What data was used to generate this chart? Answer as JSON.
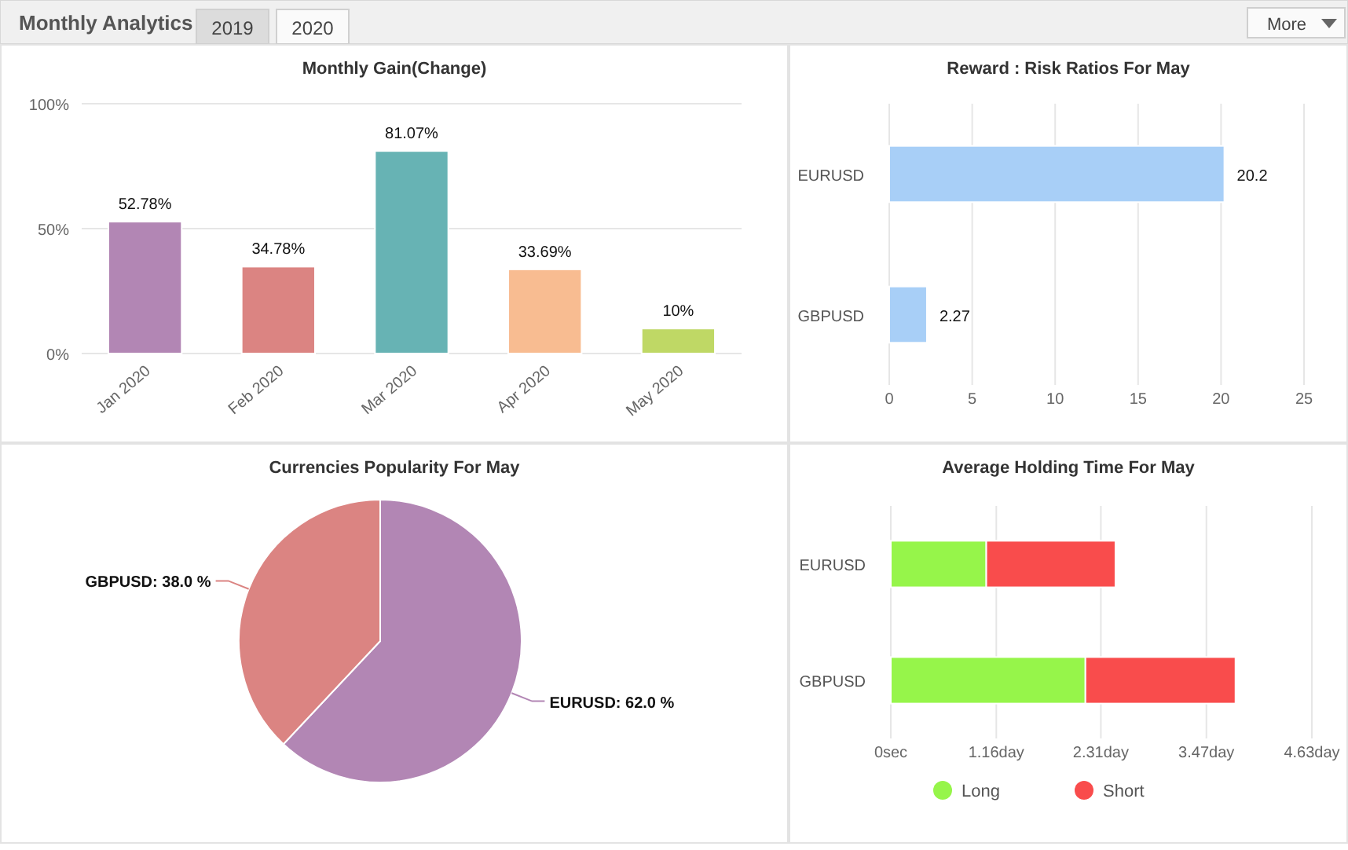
{
  "chart_data": [
    {
      "type": "other",
      "title": "Monthly Analytics",
      "annotations": [
        "2019",
        "2020",
        "More"
      ]
    },
    {
      "type": "bar",
      "title": "Monthly Gain(Change)",
      "categories": [
        "Jan 2020",
        "Feb 2020",
        "Mar 2020",
        "Apr 2020",
        "May 2020"
      ],
      "values": [
        52.78,
        34.78,
        81.07,
        33.69,
        10
      ],
      "colors": [
        "#b286b4",
        "#db8482",
        "#67b3b4",
        "#f8bc91",
        "#bfd865"
      ],
      "value_labels": [
        "52.78%",
        "34.78%",
        "81.07%",
        "33.69%",
        "10%"
      ],
      "ylim": [
        0,
        100
      ],
      "yticks": [
        {
          "value": 0,
          "label": "0%"
        },
        {
          "value": 50,
          "label": "50%"
        },
        {
          "value": 100,
          "label": "100%"
        }
      ],
      "grid": "y",
      "legend": false
    },
    {
      "type": "bar",
      "orientation": "horizontal",
      "title": "Reward : Risk Ratios For May",
      "categories": [
        "EURUSD",
        "GBPUSD"
      ],
      "values": [
        20.2,
        2.27
      ],
      "color": "#a8cff7",
      "data_labels": true,
      "xlim": [
        0,
        25
      ],
      "xticks": [
        0,
        5,
        10,
        15,
        20,
        25
      ],
      "grid": "x",
      "legend": false
    },
    {
      "type": "pie",
      "title": "Currencies Popularity For May",
      "categories": [
        "EURUSD",
        "GBPUSD"
      ],
      "values": [
        62,
        38
      ],
      "colors": [
        "#b286b4",
        "#db8482"
      ],
      "value_labels": [
        ": 62.0 %",
        ": 38.0 %"
      ]
    },
    {
      "type": "bar",
      "orientation": "horizontal",
      "stacked": true,
      "title": "Average Holding Time For May",
      "categories": [
        "EURUSD",
        "GBPUSD"
      ],
      "series": [
        {
          "name": "Long",
          "color": "#96f54a",
          "values": [
            1.05,
            2.14
          ]
        },
        {
          "name": "Short",
          "color": "#f94c4c",
          "values": [
            1.42,
            1.65
          ]
        }
      ],
      "xlim": [
        0,
        4.63
      ],
      "xticks": [
        {
          "value": 0,
          "label": "0sec"
        },
        {
          "value": 1.16,
          "label": "1.16day"
        },
        {
          "value": 2.31,
          "label": "2.31day"
        },
        {
          "value": 3.47,
          "label": "3.47day"
        },
        {
          "value": 4.63,
          "label": "4.63day"
        }
      ],
      "grid": "x",
      "legend": "bottom"
    }
  ]
}
